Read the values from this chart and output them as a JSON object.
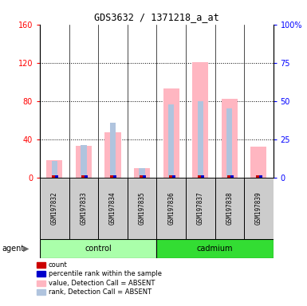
{
  "title": "GDS3632 / 1371218_a_at",
  "samples": [
    "GSM197832",
    "GSM197833",
    "GSM197834",
    "GSM197835",
    "GSM197836",
    "GSM197837",
    "GSM197838",
    "GSM197839"
  ],
  "value_absent": [
    18,
    33,
    47,
    10,
    93,
    121,
    82,
    32
  ],
  "rank_absent_pct": [
    11,
    21,
    36,
    6,
    48,
    50,
    45,
    0
  ],
  "count_val": [
    2,
    2,
    2,
    2,
    2,
    2,
    2,
    2
  ],
  "rank_val": [
    2,
    2,
    2,
    2,
    2,
    2,
    2,
    2
  ],
  "ylim_left": [
    0,
    160
  ],
  "ylim_right": [
    0,
    100
  ],
  "yticks_left": [
    0,
    40,
    80,
    120,
    160
  ],
  "yticks_right": [
    0,
    25,
    50,
    75,
    100
  ],
  "ytick_labels_left": [
    "0",
    "40",
    "80",
    "120",
    "160"
  ],
  "ytick_labels_right": [
    "0",
    "25",
    "50",
    "75",
    "100%"
  ],
  "color_value_absent": "#FFB6C1",
  "color_rank_absent": "#B0C4DE",
  "color_count": "#CC0000",
  "color_rank_blue": "#0000CC",
  "bar_width": 0.55,
  "rank_bar_width": 0.2,
  "agent_label": "agent",
  "sample_bg": "#CCCCCC",
  "control_color": "#AAFFAA",
  "cadmium_color": "#33DD33",
  "n_control": 4,
  "n_cadmium": 4
}
